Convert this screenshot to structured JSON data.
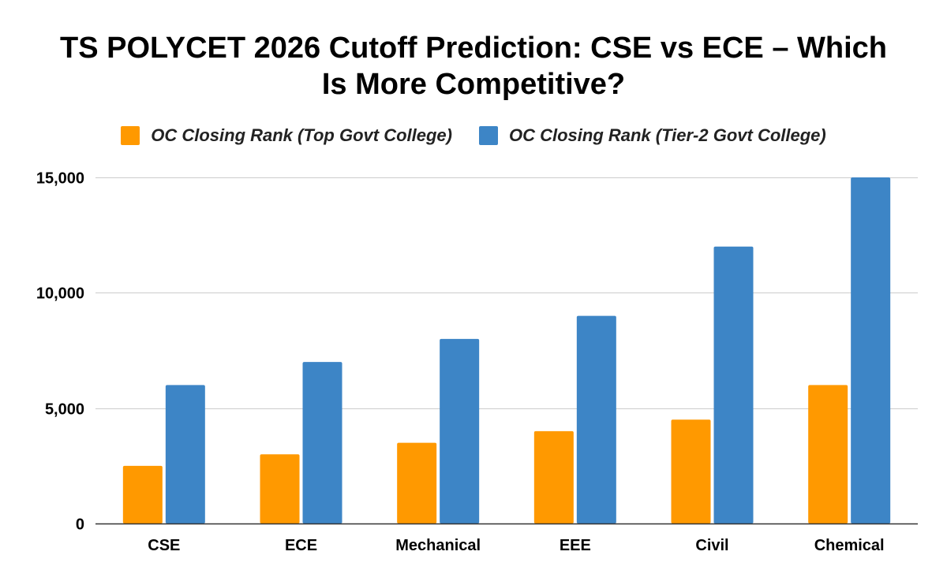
{
  "chart_data": {
    "type": "bar",
    "title_lines": [
      "TS POLYCET 2026 Cutoff Prediction: CSE vs ECE – Which",
      "Is More Competitive?"
    ],
    "categories": [
      "CSE",
      "ECE",
      "Mechanical",
      "EEE",
      "Civil",
      "Chemical"
    ],
    "series": [
      {
        "name": "OC Closing Rank (Top Govt College)",
        "color": "#FF9900",
        "values": [
          2500,
          3000,
          3500,
          4000,
          4500,
          6000
        ]
      },
      {
        "name": "OC Closing Rank (Tier-2 Govt College)",
        "color": "#3D85C6",
        "values": [
          6000,
          7000,
          8000,
          9000,
          12000,
          15000
        ]
      }
    ],
    "y_ticks": [
      {
        "value": 0,
        "label": "0"
      },
      {
        "value": 5000,
        "label": "5,000"
      },
      {
        "value": 10000,
        "label": "10,000"
      },
      {
        "value": 15000,
        "label": "15,000"
      }
    ],
    "ylim": [
      0,
      15000
    ],
    "grid": true,
    "legend_position": "top-center",
    "xlabel": "",
    "ylabel": ""
  }
}
